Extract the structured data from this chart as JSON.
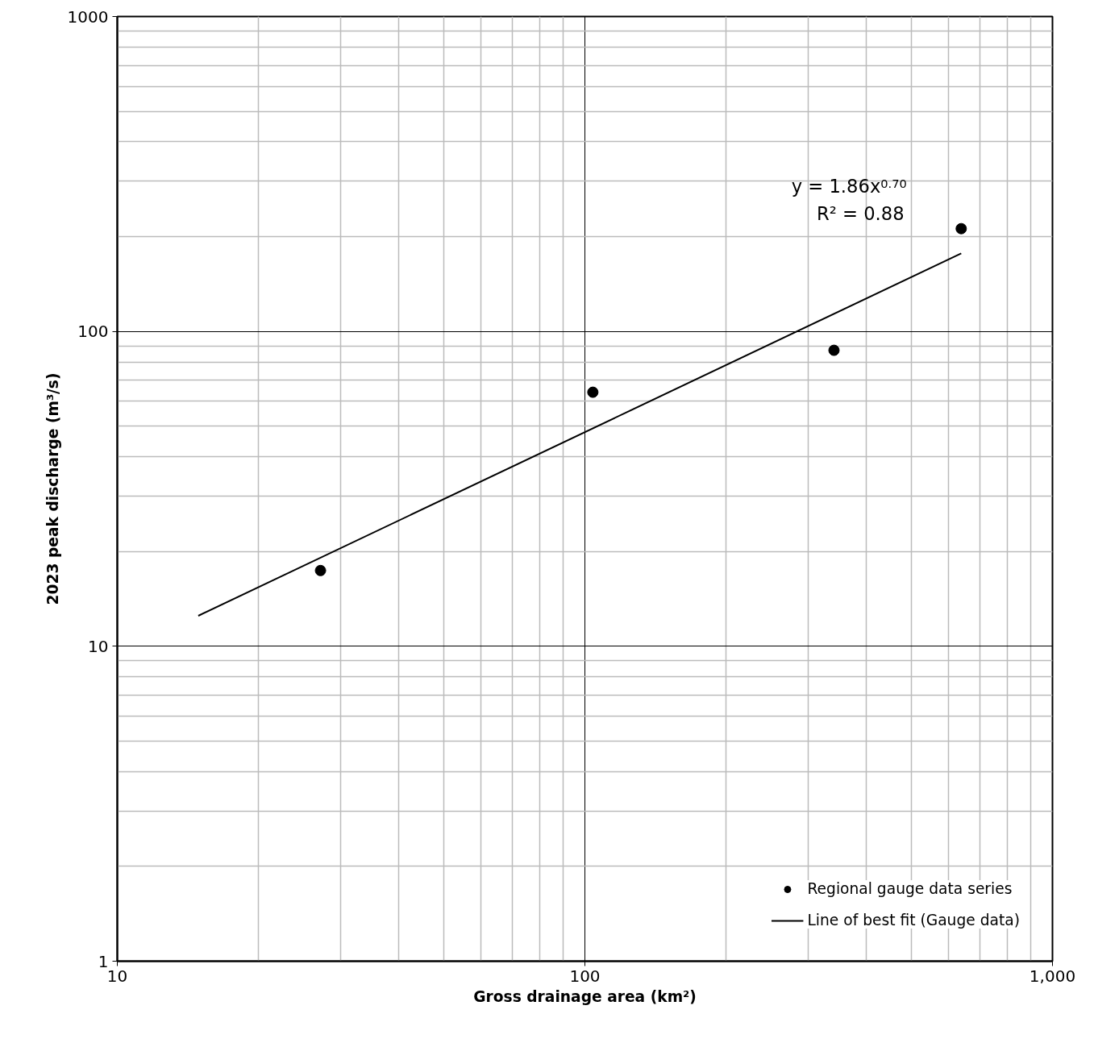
{
  "chart_data": {
    "type": "scatter",
    "xlabel": "Gross drainage area (km²)",
    "ylabel": "2023 peak discharge (m³/s)",
    "log": "xy",
    "xlim": [
      10,
      1000
    ],
    "ylim": [
      1,
      1000
    ],
    "xticks": [
      10,
      100,
      {
        "value": 1000,
        "label": "1,000"
      }
    ],
    "yticks": [
      1,
      10,
      100,
      1000
    ],
    "grid": true,
    "legend": "bottom right",
    "marker": "circle",
    "series": [
      {
        "name": "Regional gauge data series",
        "color": "#000000",
        "x": [
          27.2,
          104,
          341,
          638
        ],
        "values": [
          17.4,
          64.1,
          87.1,
          212
        ]
      },
      {
        "name": "Line of best fit (Gauge data)",
        "type": "line",
        "color": "#000000",
        "line_style": "solid",
        "marker": "none",
        "x": [
          14.9,
          638
        ],
        "values": [
          12.5,
          177
        ]
      }
    ],
    "annotations": [
      "y = 1.86x$^{0.70}$",
      "R² = 0.88"
    ]
  }
}
